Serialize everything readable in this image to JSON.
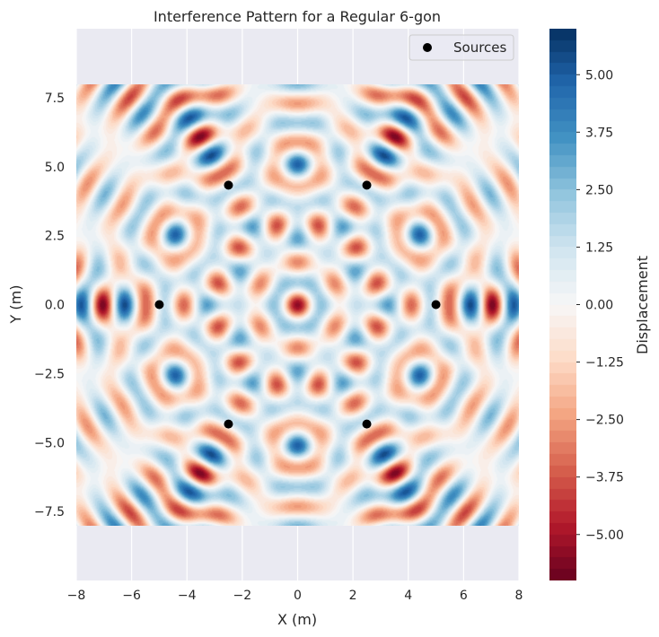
{
  "chart_data": {
    "type": "heatmap",
    "title": "Interference Pattern for a Regular 6-gon",
    "xlabel": "X (m)",
    "ylabel": "Y (m)",
    "xlim": [
      -8,
      8
    ],
    "ylim": [
      -10,
      10
    ],
    "field_extent": {
      "x": [
        -8,
        8
      ],
      "y": [
        -8,
        8
      ]
    },
    "x_ticks": [
      "−8",
      "−6",
      "−4",
      "−2",
      "0",
      "2",
      "4",
      "6",
      "8"
    ],
    "x_tick_values": [
      -8,
      -6,
      -4,
      -2,
      0,
      2,
      4,
      6,
      8
    ],
    "y_ticks": [
      "−7.5",
      "−5.0",
      "−2.5",
      "0.0",
      "2.5",
      "5.0",
      "7.5"
    ],
    "y_tick_values": [
      -7.5,
      -5.0,
      -2.5,
      0.0,
      2.5,
      5.0,
      7.5
    ],
    "grid": true,
    "sources": {
      "label": "Sources",
      "points": [
        {
          "x": 5.0,
          "y": 0.0
        },
        {
          "x": 2.5,
          "y": 4.33
        },
        {
          "x": -2.5,
          "y": 4.33
        },
        {
          "x": -5.0,
          "y": 0.0
        },
        {
          "x": -2.5,
          "y": -4.33
        },
        {
          "x": 2.5,
          "y": -4.33
        }
      ]
    },
    "wavelength": 1.4,
    "legend": {
      "entries": [
        "Sources"
      ],
      "placement": "top-right"
    },
    "colorbar": {
      "label": "Displacement",
      "range": [
        -6,
        6
      ],
      "colormap": "RdBu",
      "ticks": [
        "−5.00",
        "−3.75",
        "−2.50",
        "−1.25",
        "0.00",
        "1.25",
        "2.50",
        "3.75",
        "5.00"
      ],
      "tick_values": [
        -5.0,
        -3.75,
        -2.5,
        -1.25,
        0.0,
        1.25,
        2.5,
        3.75,
        5.0
      ],
      "levels": 48
    }
  },
  "colors": {
    "plot_background": "#eaeaf2",
    "grid": "#ffffff",
    "source_marker": "#000000"
  }
}
